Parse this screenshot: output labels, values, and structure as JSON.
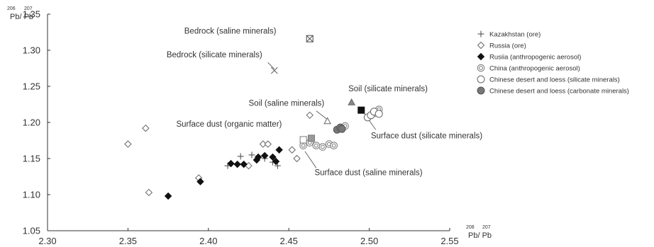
{
  "chart_data": {
    "type": "scatter",
    "xlabel": "Pb/ Pb",
    "xlabel_superscripts": [
      "208",
      "207"
    ],
    "ylabel": "Pb/ Pb",
    "ylabel_superscripts": [
      "206",
      "207"
    ],
    "xlim": [
      2.3,
      2.55
    ],
    "ylim": [
      1.05,
      1.35
    ],
    "x_ticks": [
      "2.30",
      "2.35",
      "2.40",
      "2.45",
      "2.50",
      "2.55"
    ],
    "y_ticks": [
      "1.05",
      "1.10",
      "1.15",
      "1.20",
      "1.25",
      "1.30",
      "1.35"
    ],
    "grid": false,
    "legend_position": "top-right",
    "series": [
      {
        "name": "Kazakhstan (ore)",
        "marker": "plus",
        "color": "#444444",
        "points": [
          [
            2.412,
            1.14
          ],
          [
            2.42,
            1.153
          ],
          [
            2.427,
            1.155
          ],
          [
            2.435,
            1.15
          ],
          [
            2.443,
            1.14
          ],
          [
            2.44,
            1.145
          ]
        ]
      },
      {
        "name": "Russia (ore)",
        "marker": "diamond-open",
        "color": "#666666",
        "points": [
          [
            2.35,
            1.17
          ],
          [
            2.361,
            1.192
          ],
          [
            2.363,
            1.103
          ],
          [
            2.394,
            1.123
          ],
          [
            2.425,
            1.14
          ],
          [
            2.434,
            1.17
          ],
          [
            2.437,
            1.17
          ],
          [
            2.452,
            1.162
          ],
          [
            2.455,
            1.15
          ],
          [
            2.463,
            1.21
          ]
        ]
      },
      {
        "name": "Rusiia (anthropogenic aerosol)",
        "marker": "diamond-filled",
        "color": "#111111",
        "points": [
          [
            2.375,
            1.098
          ],
          [
            2.395,
            1.118
          ],
          [
            2.414,
            1.143
          ],
          [
            2.418,
            1.142
          ],
          [
            2.422,
            1.142
          ],
          [
            2.43,
            1.148
          ],
          [
            2.431,
            1.152
          ],
          [
            2.435,
            1.154
          ],
          [
            2.44,
            1.152
          ],
          [
            2.442,
            1.146
          ],
          [
            2.444,
            1.162
          ]
        ]
      },
      {
        "name": "China (anthropogenic aerosol)",
        "marker": "double-circle",
        "color": "#777777",
        "points": [
          [
            2.459,
            1.168
          ],
          [
            2.463,
            1.172
          ],
          [
            2.467,
            1.168
          ],
          [
            2.471,
            1.166
          ],
          [
            2.475,
            1.17
          ],
          [
            2.478,
            1.168
          ],
          [
            2.485,
            1.195
          ],
          [
            2.504,
            1.213
          ],
          [
            2.506,
            1.218
          ]
        ]
      },
      {
        "name": "Chinese desert and loess (silicate minerals)",
        "marker": "circle-open",
        "color": "#666666",
        "points": [
          [
            2.499,
            1.207
          ],
          [
            2.501,
            1.21
          ],
          [
            2.503,
            1.215
          ],
          [
            2.506,
            1.212
          ]
        ]
      },
      {
        "name": "Chinese desert and loess (carbonate minerals)",
        "marker": "circle-filled",
        "color": "#777777",
        "points": [
          [
            2.48,
            1.19
          ],
          [
            2.482,
            1.193
          ],
          [
            2.483,
            1.191
          ]
        ]
      }
    ],
    "special_points": [
      {
        "marker": "boxed-x",
        "color": "#444444",
        "x": 2.463,
        "y": 1.316
      },
      {
        "marker": "x",
        "color": "#555555",
        "x": 2.441,
        "y": 1.272
      },
      {
        "marker": "triangle-open",
        "color": "#666666",
        "x": 2.474,
        "y": 1.202
      },
      {
        "marker": "triangle-filled",
        "color": "#888888",
        "x": 2.489,
        "y": 1.228
      },
      {
        "marker": "square-filled",
        "color": "#111111",
        "x": 2.495,
        "y": 1.217
      },
      {
        "marker": "square-gray",
        "color": "#999999",
        "x": 2.464,
        "y": 1.178
      },
      {
        "marker": "square-open",
        "color": "#777777",
        "x": 2.459,
        "y": 1.176
      }
    ],
    "annotations": [
      {
        "text": "Bedrock (saline minerals)",
        "x": 2.385,
        "y": 1.323,
        "line": null
      },
      {
        "text": "Bedrock (silicate minerals)",
        "x": 2.374,
        "y": 1.29,
        "line": [
          [
            2.437,
            1.283
          ],
          [
            2.441,
            1.274
          ]
        ]
      },
      {
        "text": "Soil (saline minerals)",
        "x": 2.425,
        "y": 1.223,
        "line": [
          [
            2.467,
            1.216
          ],
          [
            2.474,
            1.204
          ]
        ]
      },
      {
        "text": "Soil (silicate minerals)",
        "x": 2.487,
        "y": 1.243,
        "line": null
      },
      {
        "text": "Surface dust (organic matter)",
        "x": 2.38,
        "y": 1.194,
        "line": null
      },
      {
        "text": "Surface dust (silicate minerals)",
        "x": 2.501,
        "y": 1.178,
        "line": [
          [
            2.497,
            1.212
          ],
          [
            2.504,
            1.19
          ]
        ]
      },
      {
        "text": "Surface dust (saline minerals)",
        "x": 2.466,
        "y": 1.127,
        "line": [
          [
            2.46,
            1.16
          ],
          [
            2.467,
            1.137
          ]
        ]
      }
    ]
  }
}
